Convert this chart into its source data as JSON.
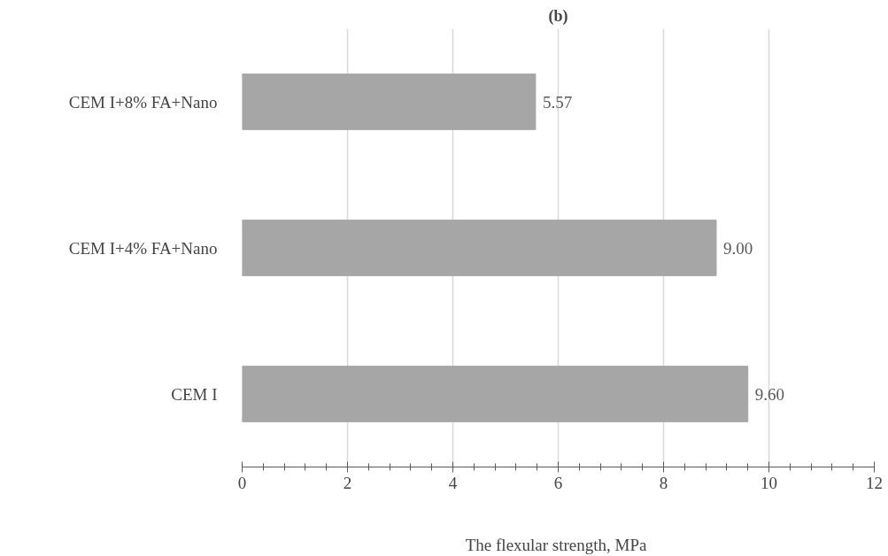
{
  "chart_data": {
    "type": "bar",
    "orientation": "horizontal",
    "title": "(b)",
    "xlabel": "The flexular  strength, MPa",
    "categories": [
      "CEM I+8% FA+Nano",
      "CEM I+4% FA+Nano",
      "CEM I"
    ],
    "values": [
      5.57,
      9.0,
      9.6
    ],
    "color": "#a6a6a6",
    "value_labels": [
      "5.57",
      "9.00",
      "9.60"
    ],
    "xlim": [
      0,
      12
    ],
    "xticks": [
      0,
      2,
      4,
      6,
      8,
      10,
      12
    ],
    "grid": "x"
  }
}
